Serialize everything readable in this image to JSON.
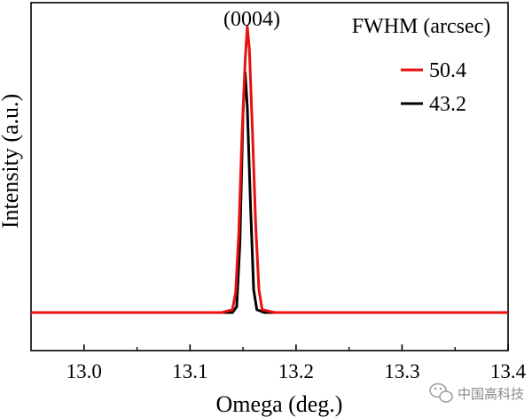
{
  "chart_data": {
    "type": "line",
    "xlabel": "Omega (deg.)",
    "ylabel": "Intensity (a.u.)",
    "xlim": [
      12.95,
      13.4
    ],
    "xticks": [
      "13.0",
      "13.1",
      "13.2",
      "13.3",
      "13.4"
    ],
    "ylim": [
      0,
      1.08
    ],
    "y_tick_labels": false,
    "grid": false,
    "legend_title": "FWHM (arcsec)",
    "legend_position": "top-right",
    "annotation": "(0004)",
    "series": [
      {
        "name": "50.4",
        "color": "#e8110f",
        "points": [
          [
            12.95,
            0.0
          ],
          [
            13.13,
            0.0
          ],
          [
            13.14,
            0.01
          ],
          [
            13.143,
            0.07
          ],
          [
            13.146,
            0.28
          ],
          [
            13.149,
            0.62
          ],
          [
            13.152,
            0.88
          ],
          [
            13.154,
            1.0
          ],
          [
            13.156,
            0.92
          ],
          [
            13.159,
            0.62
          ],
          [
            13.162,
            0.3
          ],
          [
            13.165,
            0.08
          ],
          [
            13.168,
            0.01
          ],
          [
            13.18,
            0.0
          ],
          [
            13.4,
            0.0
          ]
        ]
      },
      {
        "name": "43.2",
        "color": "#000000",
        "points": [
          [
            12.95,
            0.0
          ],
          [
            13.14,
            0.0
          ],
          [
            13.144,
            0.02
          ],
          [
            13.147,
            0.24
          ],
          [
            13.15,
            0.7
          ],
          [
            13.152,
            0.84
          ],
          [
            13.154,
            0.72
          ],
          [
            13.157,
            0.38
          ],
          [
            13.16,
            0.08
          ],
          [
            13.163,
            0.01
          ],
          [
            13.17,
            0.0
          ],
          [
            13.4,
            0.0
          ]
        ]
      }
    ]
  },
  "watermark": {
    "text": "中国高科技",
    "icon": "wechat-icon"
  }
}
